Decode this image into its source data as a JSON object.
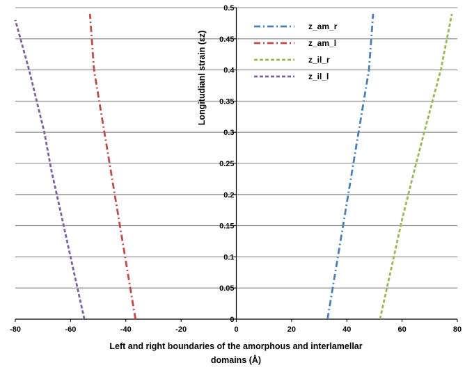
{
  "chart_data": {
    "type": "line",
    "title": "",
    "xlabel": "Left and right boundaries of the amorphous and interlamellar domains (Å)",
    "xlabel_lines": [
      "Left and right boundaries of the amorphous and interlamellar",
      "domains (Å)"
    ],
    "ylabel": "Longitudianl strain (εz)",
    "xlim": [
      -80,
      80
    ],
    "ylim": [
      0,
      0.5
    ],
    "x_ticks": [
      "-80",
      "-60",
      "-40",
      "-20",
      "0",
      "20",
      "40",
      "60",
      "80"
    ],
    "y_ticks": [
      "0",
      "0.05",
      "0.1",
      "0.15",
      "0.2",
      "0.25",
      "0.3",
      "0.35",
      "0.4",
      "0.45",
      "0.5"
    ],
    "grid": "horizontal",
    "legend_position": "top-left of right half",
    "series": [
      {
        "name": "z_am_r",
        "color": "#4a7ebb",
        "dash": "dashdot",
        "x": [
          33,
          36,
          39,
          42,
          45,
          48,
          49.5
        ],
        "y": [
          0,
          0.08,
          0.16,
          0.24,
          0.32,
          0.4,
          0.49
        ]
      },
      {
        "name": "z_am_l",
        "color": "#be4b48",
        "dash": "dashdot",
        "x": [
          -36.5,
          -39.5,
          -42.5,
          -45.5,
          -48.5,
          -51.5,
          -53
        ],
        "y": [
          0,
          0.08,
          0.16,
          0.24,
          0.32,
          0.4,
          0.49
        ]
      },
      {
        "name": "z_il_r",
        "color": "#98b954",
        "dash": "dash",
        "x": [
          52,
          56,
          60,
          64.5,
          68,
          74,
          78
        ],
        "y": [
          0,
          0.08,
          0.16,
          0.24,
          0.3,
          0.4,
          0.49
        ]
      },
      {
        "name": "z_il_l",
        "color": "#7d60a0",
        "dash": "dash",
        "x": [
          -55,
          -59,
          -63,
          -67,
          -69.5,
          -75,
          -80
        ],
        "y": [
          0,
          0.08,
          0.16,
          0.24,
          0.3,
          0.4,
          0.48
        ]
      }
    ]
  }
}
